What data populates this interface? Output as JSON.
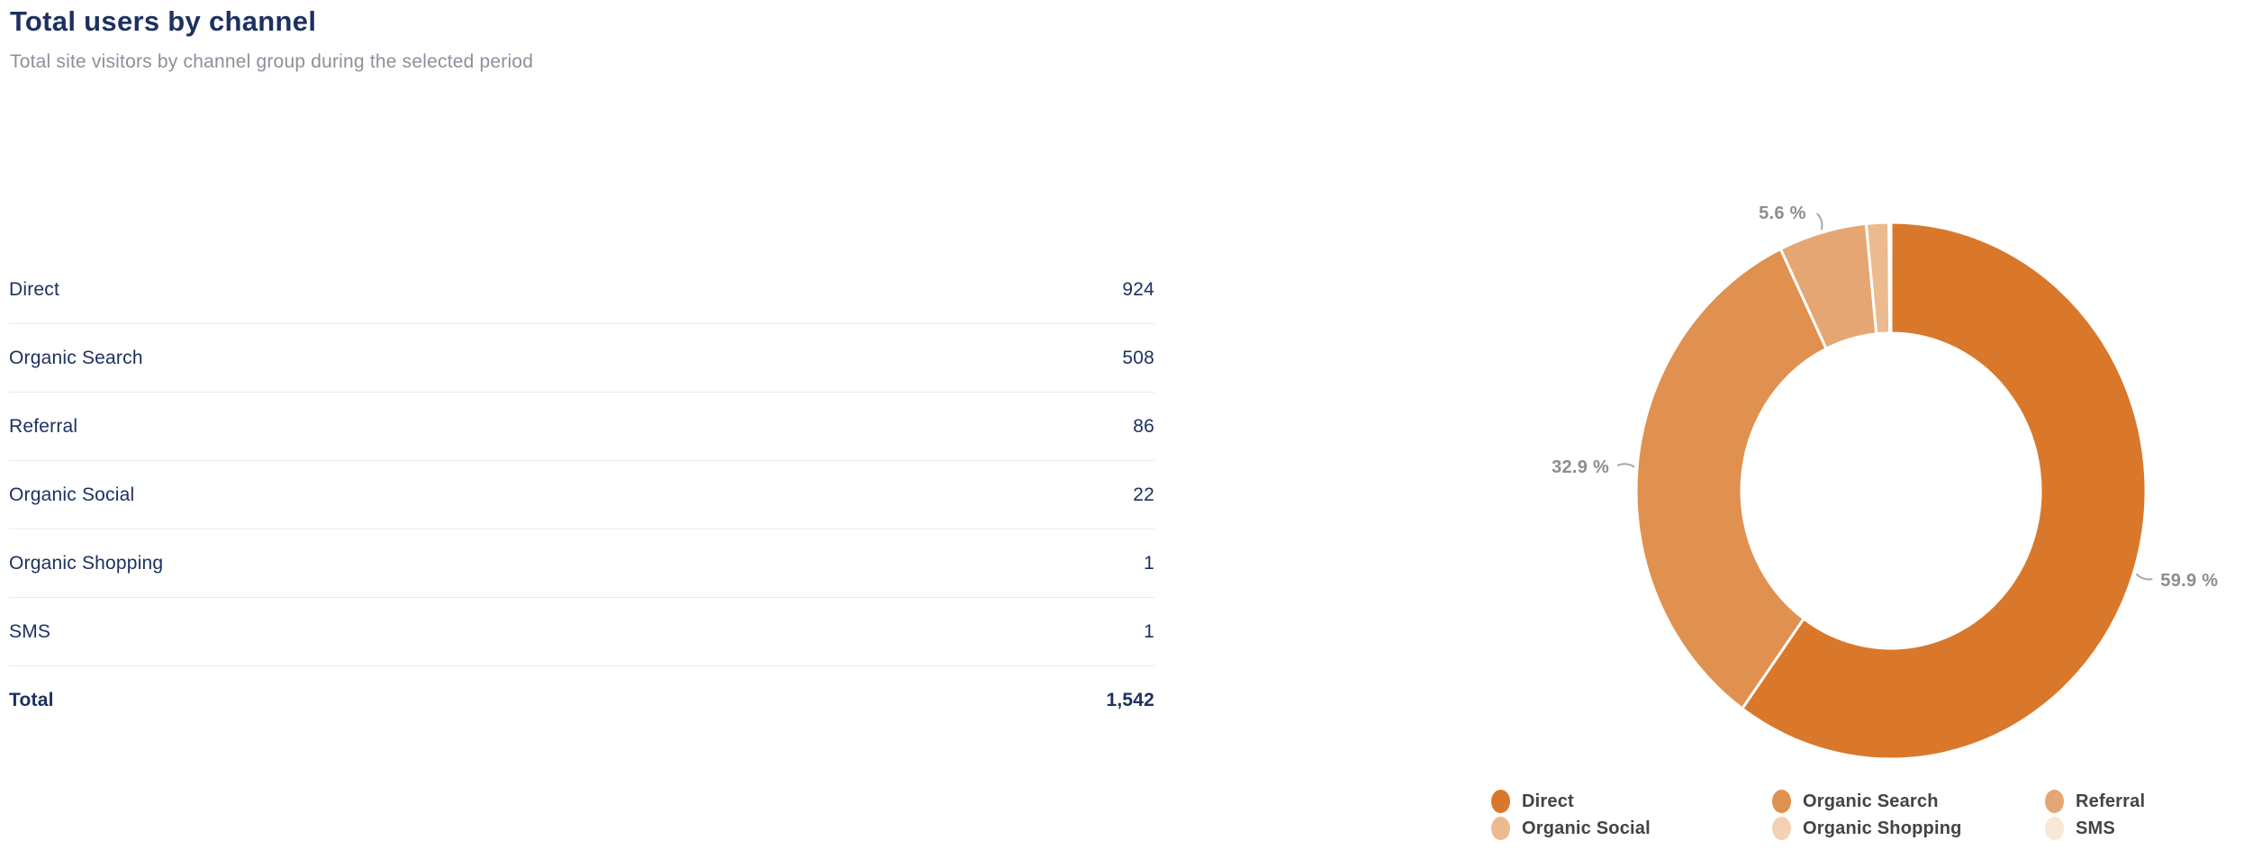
{
  "header": {
    "title": "Total users by channel",
    "subtitle": "Total site visitors by channel group during the selected period"
  },
  "table": {
    "rows": [
      {
        "label": "Direct",
        "value": "924"
      },
      {
        "label": "Organic Search",
        "value": "508"
      },
      {
        "label": "Referral",
        "value": "86"
      },
      {
        "label": "Organic Social",
        "value": "22"
      },
      {
        "label": "Organic Shopping",
        "value": "1"
      },
      {
        "label": "SMS",
        "value": "1"
      }
    ],
    "total": {
      "label": "Total",
      "value": "1,542"
    }
  },
  "chart_data": {
    "type": "pie",
    "donut": true,
    "title": "Total users by channel",
    "total": 1542,
    "legend_position": "bottom",
    "start_angle_deg": 0,
    "direction": "clockwise",
    "slices": [
      {
        "name": "Direct",
        "value": 924,
        "pct": 59.9,
        "pct_label": "59.9 %",
        "color": "#d9782b"
      },
      {
        "name": "Organic Search",
        "value": 508,
        "pct": 32.9,
        "pct_label": "32.9 %",
        "color": "#e0904f"
      },
      {
        "name": "Referral",
        "value": 86,
        "pct": 5.6,
        "pct_label": "5.6 %",
        "color": "#e5a673"
      },
      {
        "name": "Organic Social",
        "value": 22,
        "pct": 1.4,
        "pct_label": null,
        "color": "#ecba8e"
      },
      {
        "name": "Organic Shopping",
        "value": 1,
        "pct": 0.1,
        "pct_label": null,
        "color": "#f3d2b3"
      },
      {
        "name": "SMS",
        "value": 1,
        "pct": 0.1,
        "pct_label": null,
        "color": "#f9e6d5"
      }
    ]
  },
  "colors": {
    "title_navy": "#1d3160",
    "subtitle_gray": "#8b909b",
    "divider": "#e9eaee",
    "pct_label_gray": "#8d8d8d",
    "legend_text": "#414345",
    "background": "#ffffff"
  }
}
